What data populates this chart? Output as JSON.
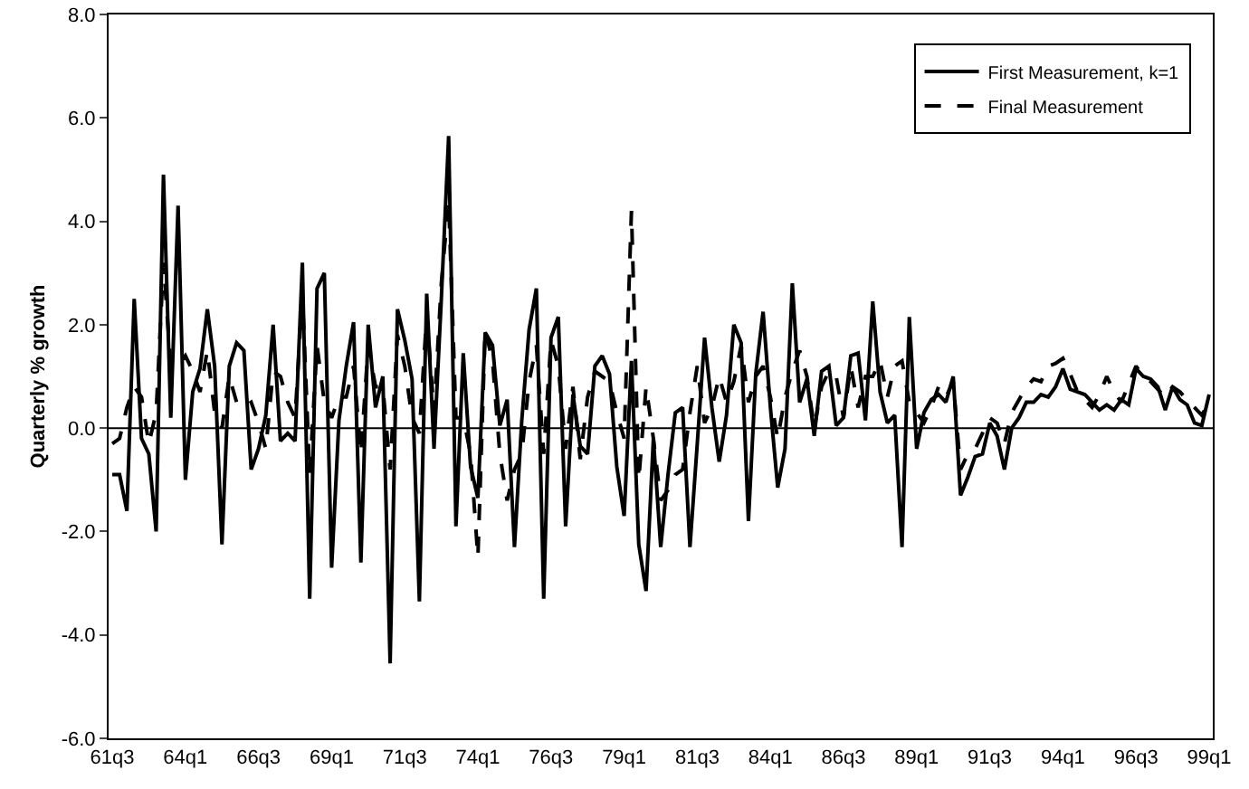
{
  "chart_data": {
    "type": "line",
    "ylabel": "Quarterly % growth",
    "ylim": [
      -6,
      8
    ],
    "yticks": [
      {
        "value": -6,
        "label": "-6.0"
      },
      {
        "value": -4,
        "label": "-4.0"
      },
      {
        "value": -2,
        "label": "-2.0"
      },
      {
        "value": 0,
        "label": "0.0"
      },
      {
        "value": 2,
        "label": "2.0"
      },
      {
        "value": 4,
        "label": "4.0"
      },
      {
        "value": 6,
        "label": "6.0"
      },
      {
        "value": 8,
        "label": "8.0"
      }
    ],
    "categories": [
      "61q3",
      null,
      null,
      null,
      null,
      null,
      null,
      null,
      null,
      null,
      "64q1",
      null,
      null,
      null,
      null,
      null,
      null,
      null,
      null,
      null,
      "66q3",
      null,
      null,
      null,
      null,
      null,
      null,
      null,
      null,
      null,
      "69q1",
      null,
      null,
      null,
      null,
      null,
      null,
      null,
      null,
      null,
      "71q3",
      null,
      null,
      null,
      null,
      null,
      null,
      null,
      null,
      null,
      "74q1",
      null,
      null,
      null,
      null,
      null,
      null,
      null,
      null,
      null,
      "76q3",
      null,
      null,
      null,
      null,
      null,
      null,
      null,
      null,
      null,
      "79q1",
      null,
      null,
      null,
      null,
      null,
      null,
      null,
      null,
      null,
      "81q3",
      null,
      null,
      null,
      null,
      null,
      null,
      null,
      null,
      null,
      "84q1",
      null,
      null,
      null,
      null,
      null,
      null,
      null,
      null,
      null,
      "86q3",
      null,
      null,
      null,
      null,
      null,
      null,
      null,
      null,
      null,
      "89q1",
      null,
      null,
      null,
      null,
      null,
      null,
      null,
      null,
      null,
      "91q3",
      null,
      null,
      null,
      null,
      null,
      null,
      null,
      null,
      null,
      "94q1",
      null,
      null,
      null,
      null,
      null,
      null,
      null,
      null,
      null,
      "96q3",
      null,
      null,
      null,
      null,
      null,
      null,
      null,
      null,
      null,
      "99q1"
    ],
    "grid": false,
    "legend": "top right",
    "marker": "none",
    "ref_lines": [
      {
        "axis": "y",
        "value": 0,
        "color": "#000000",
        "line_style": "solid"
      }
    ],
    "series": [
      {
        "name": "First Measurement, k=1",
        "color": "#000000",
        "line_style": "solid",
        "values": [
          -0.9,
          -0.9,
          -1.6,
          2.5,
          -0.2,
          -0.5,
          -2.0,
          4.9,
          0.2,
          4.3,
          -1.0,
          0.7,
          1.15,
          2.3,
          1.2,
          -2.25,
          1.2,
          1.65,
          1.5,
          -0.8,
          -0.4,
          0.25,
          2.0,
          -0.25,
          -0.1,
          -0.25,
          3.2,
          -3.3,
          2.7,
          3.0,
          -2.7,
          0.15,
          1.2,
          2.05,
          -2.6,
          2.0,
          0.4,
          1.0,
          -4.55,
          2.3,
          1.7,
          0.95,
          -3.35,
          2.6,
          -0.4,
          2.5,
          5.65,
          -1.9,
          1.45,
          -0.75,
          -1.35,
          1.85,
          1.6,
          0.05,
          0.55,
          -2.3,
          0.15,
          1.9,
          2.7,
          -3.3,
          1.75,
          2.15,
          -1.9,
          0.65,
          -0.35,
          -0.5,
          1.2,
          1.4,
          1.05,
          -0.75,
          -1.7,
          1.3,
          -2.25,
          -3.15,
          -0.2,
          -2.3,
          -0.9,
          0.3,
          0.4,
          -2.3,
          -0.3,
          1.75,
          0.4,
          -0.65,
          0.25,
          2.0,
          1.65,
          -1.8,
          1.05,
          2.25,
          0.4,
          -1.15,
          -0.4,
          2.8,
          0.5,
          0.95,
          -0.15,
          1.1,
          1.2,
          0.05,
          0.2,
          1.4,
          1.45,
          0.15,
          2.45,
          0.7,
          0.1,
          0.25,
          -2.3,
          2.15,
          -0.4,
          0.3,
          0.55,
          0.65,
          0.5,
          1.0,
          -1.3,
          -0.95,
          -0.55,
          -0.5,
          0.1,
          -0.15,
          -0.8,
          0.0,
          0.2,
          0.5,
          0.5,
          0.65,
          0.6,
          0.8,
          1.15,
          0.75,
          0.7,
          0.65,
          0.5,
          0.35,
          0.45,
          0.35,
          0.55,
          0.45,
          1.15,
          1.0,
          0.95,
          0.8,
          0.35,
          0.8,
          0.55,
          0.45,
          0.1,
          0.05,
          0.65
        ]
      },
      {
        "name": "Final Measurement",
        "color": "#000000",
        "line_style": "dashed",
        "values": [
          -0.3,
          -0.2,
          0.4,
          0.8,
          0.6,
          -0.3,
          0.3,
          3.2,
          1.2,
          1.2,
          1.4,
          1.1,
          0.7,
          1.5,
          0.3,
          0.0,
          1.0,
          0.5,
          0.4,
          0.5,
          0.1,
          -0.4,
          1.1,
          1.0,
          0.5,
          0.2,
          2.6,
          -0.9,
          1.6,
          0.5,
          0.2,
          0.6,
          0.6,
          1.2,
          -0.5,
          1.6,
          0.8,
          0.8,
          -0.8,
          1.8,
          1.2,
          0.2,
          -0.1,
          2.2,
          0.3,
          2.8,
          4.4,
          0.2,
          0.2,
          -0.5,
          -2.5,
          1.9,
          1.3,
          -0.5,
          -1.4,
          -0.8,
          -0.5,
          0.9,
          1.6,
          -0.5,
          1.7,
          1.2,
          -0.4,
          0.8,
          -0.6,
          0.6,
          1.1,
          1.0,
          0.9,
          0.3,
          -0.2,
          4.2,
          -1.0,
          0.8,
          -0.2,
          -1.4,
          -1.2,
          -0.9,
          -0.8,
          0.3,
          1.2,
          0.1,
          0.4,
          1.0,
          0.5,
          0.9,
          1.6,
          0.5,
          1.0,
          1.2,
          0.6,
          -0.2,
          0.6,
          1.1,
          1.5,
          1.0,
          0.0,
          0.8,
          1.1,
          1.0,
          0.2,
          1.2,
          0.4,
          1.0,
          1.0,
          1.3,
          0.6,
          1.2,
          1.3,
          0.5,
          0.3,
          0.1,
          0.4,
          0.8,
          0.6,
          0.9,
          -0.8,
          -0.5,
          -0.4,
          -0.1,
          0.2,
          0.1,
          -0.3,
          0.3,
          0.55,
          0.8,
          0.95,
          0.9,
          1.2,
          1.25,
          1.35,
          1.05,
          0.7,
          0.55,
          0.4,
          0.65,
          1.0,
          0.7,
          0.5,
          0.85,
          1.2,
          1.0,
          0.9,
          0.75,
          0.6,
          0.8,
          0.7,
          0.55,
          0.4,
          0.25,
          0.5
        ]
      }
    ]
  }
}
